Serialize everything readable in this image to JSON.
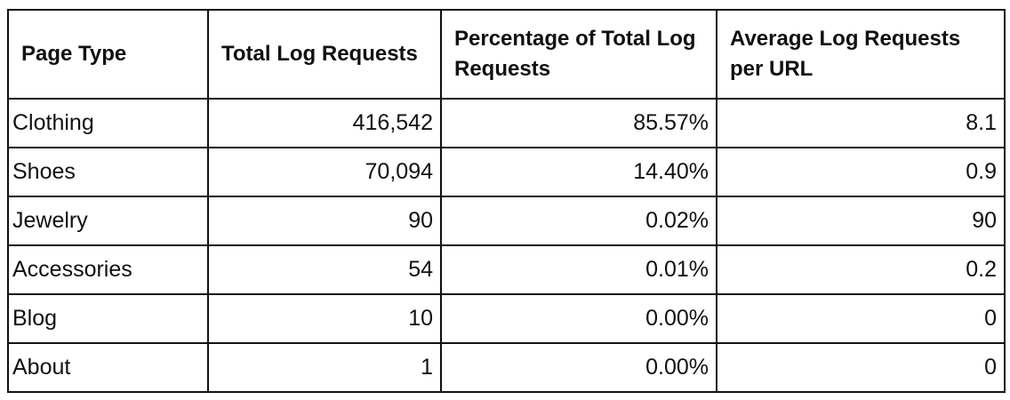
{
  "table": {
    "header": [
      "Page Type",
      "Total Log Requests",
      "Percentage of Total Log Requests",
      "Average Log Requests per URL"
    ],
    "rows": [
      [
        "Clothing",
        "416,542",
        "85.57%",
        "8.1"
      ],
      [
        "Shoes",
        "70,094",
        "14.40%",
        "0.9"
      ],
      [
        "Jewelry",
        "90",
        "0.02%",
        "90"
      ],
      [
        "Accessories",
        "54",
        "0.01%",
        "0.2"
      ],
      [
        "Blog",
        "10",
        "0.00%",
        "0"
      ],
      [
        "About",
        "1",
        "0.00%",
        "0"
      ]
    ]
  }
}
